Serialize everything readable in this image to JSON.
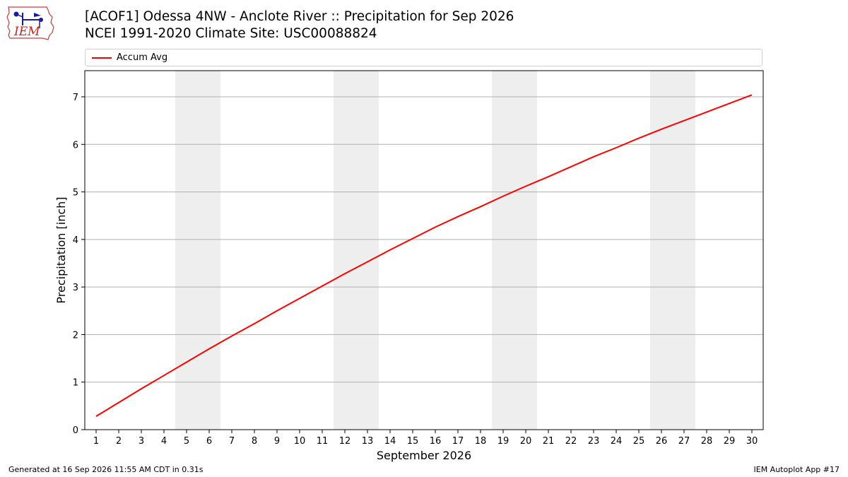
{
  "header": {
    "logo_text": "IEM",
    "title_line1": "[ACOF1] Odessa 4NW - Anclote River :: Precipitation for Sep 2026",
    "title_line2": "NCEI 1991-2020 Climate Site: USC00088824"
  },
  "footer": {
    "left": "Generated at 16 Sep 2026 11:55 AM CDT in 0.31s",
    "right": "IEM Autoplot App #17"
  },
  "colors": {
    "line": "#ff0000",
    "weekend_band": "#eeeeee",
    "grid": "#b0b0b0"
  },
  "chart_data": {
    "type": "line",
    "xlabel": "September 2026",
    "ylabel": "Precipitation [inch]",
    "x": [
      1,
      2,
      3,
      4,
      5,
      6,
      7,
      8,
      9,
      10,
      11,
      12,
      13,
      14,
      15,
      16,
      17,
      18,
      19,
      20,
      21,
      22,
      23,
      24,
      25,
      26,
      27,
      28,
      29,
      30
    ],
    "xlim": [
      0.5,
      30.5
    ],
    "ylim": [
      0,
      7.55
    ],
    "yticks": [
      0,
      1,
      2,
      3,
      4,
      5,
      6,
      7
    ],
    "grid": "horizontal",
    "legend_placement": "top",
    "weekend_days": [
      5,
      6,
      12,
      13,
      19,
      20,
      26,
      27
    ],
    "series": [
      {
        "name": "Accum Avg",
        "values": [
          0.28,
          0.57,
          0.86,
          1.14,
          1.42,
          1.7,
          1.97,
          2.23,
          2.5,
          2.76,
          3.02,
          3.28,
          3.53,
          3.78,
          4.02,
          4.26,
          4.48,
          4.69,
          4.91,
          5.12,
          5.32,
          5.53,
          5.74,
          5.93,
          6.13,
          6.32,
          6.5,
          6.68,
          6.86,
          7.04
        ]
      }
    ]
  }
}
